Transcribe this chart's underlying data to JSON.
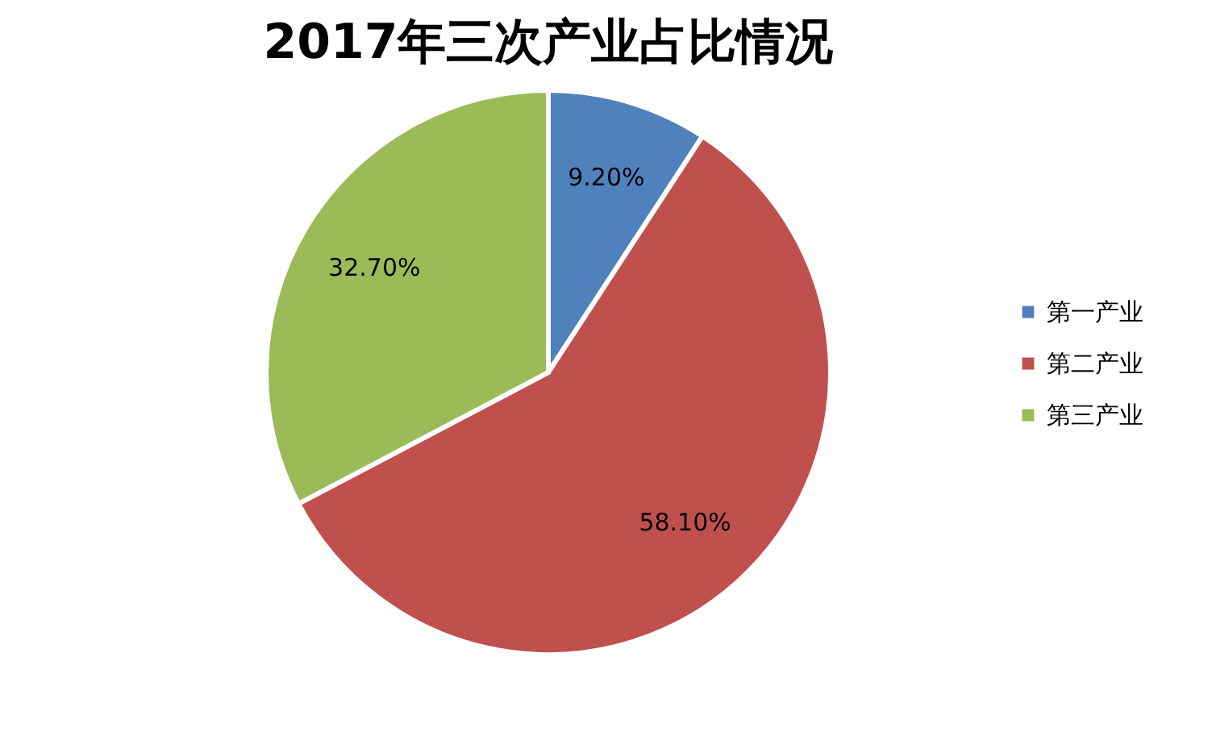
{
  "chart_data": {
    "type": "pie",
    "title": "2017年三次产业占比情况",
    "categories": [
      "第一产业",
      "第二产业",
      "第三产业"
    ],
    "values": [
      9.2,
      58.1,
      32.7
    ],
    "colors": [
      "#4f81bd",
      "#c0504d",
      "#9bbb59"
    ],
    "value_labels": [
      "9.20%",
      "58.10%",
      "32.70%"
    ],
    "legend": "right"
  }
}
